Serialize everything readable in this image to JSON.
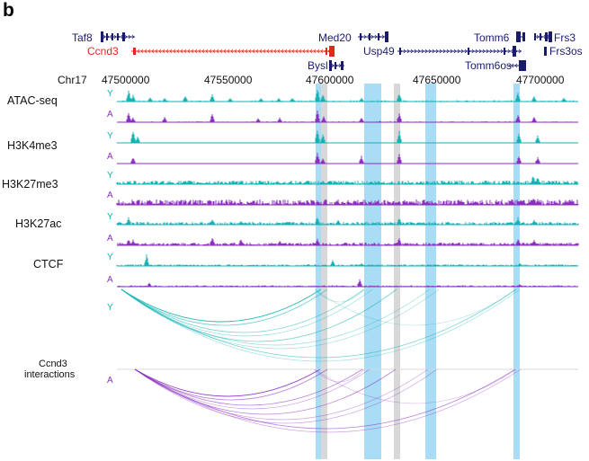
{
  "panel_label": "b",
  "genes": {
    "taf8": "Taf8",
    "ccnd3": "Ccnd3",
    "med20": "Med20",
    "bysl": "Bysl",
    "usp49": "Usp49",
    "tomm6": "Tomm6",
    "tomm6os": "Tomm6os",
    "frs3": "Frs3",
    "frs3os": "Frs3os"
  },
  "chromosome": "Chr17",
  "coordinates": [
    "47500000",
    "47550000",
    "47600000",
    "47650000",
    "47700000"
  ],
  "tracks": {
    "atac": "ATAC-seq",
    "h3k4me3": "H3K4me3",
    "h3k27me3": "H3K27me3",
    "h3k27ac": "H3K27ac",
    "ctcf": "CTCF"
  },
  "conditions": {
    "young": "Y",
    "aged": "A"
  },
  "interactions_label": [
    "Ccnd3",
    "interactions"
  ],
  "colors": {
    "young": "#14b3b3",
    "aged": "#8c2fc0",
    "gene": "#1b1b6b",
    "ccnd3": "#e8251c",
    "highlight_blue": "#8fd1f2",
    "highlight_gray": "#d3d3d3"
  }
}
